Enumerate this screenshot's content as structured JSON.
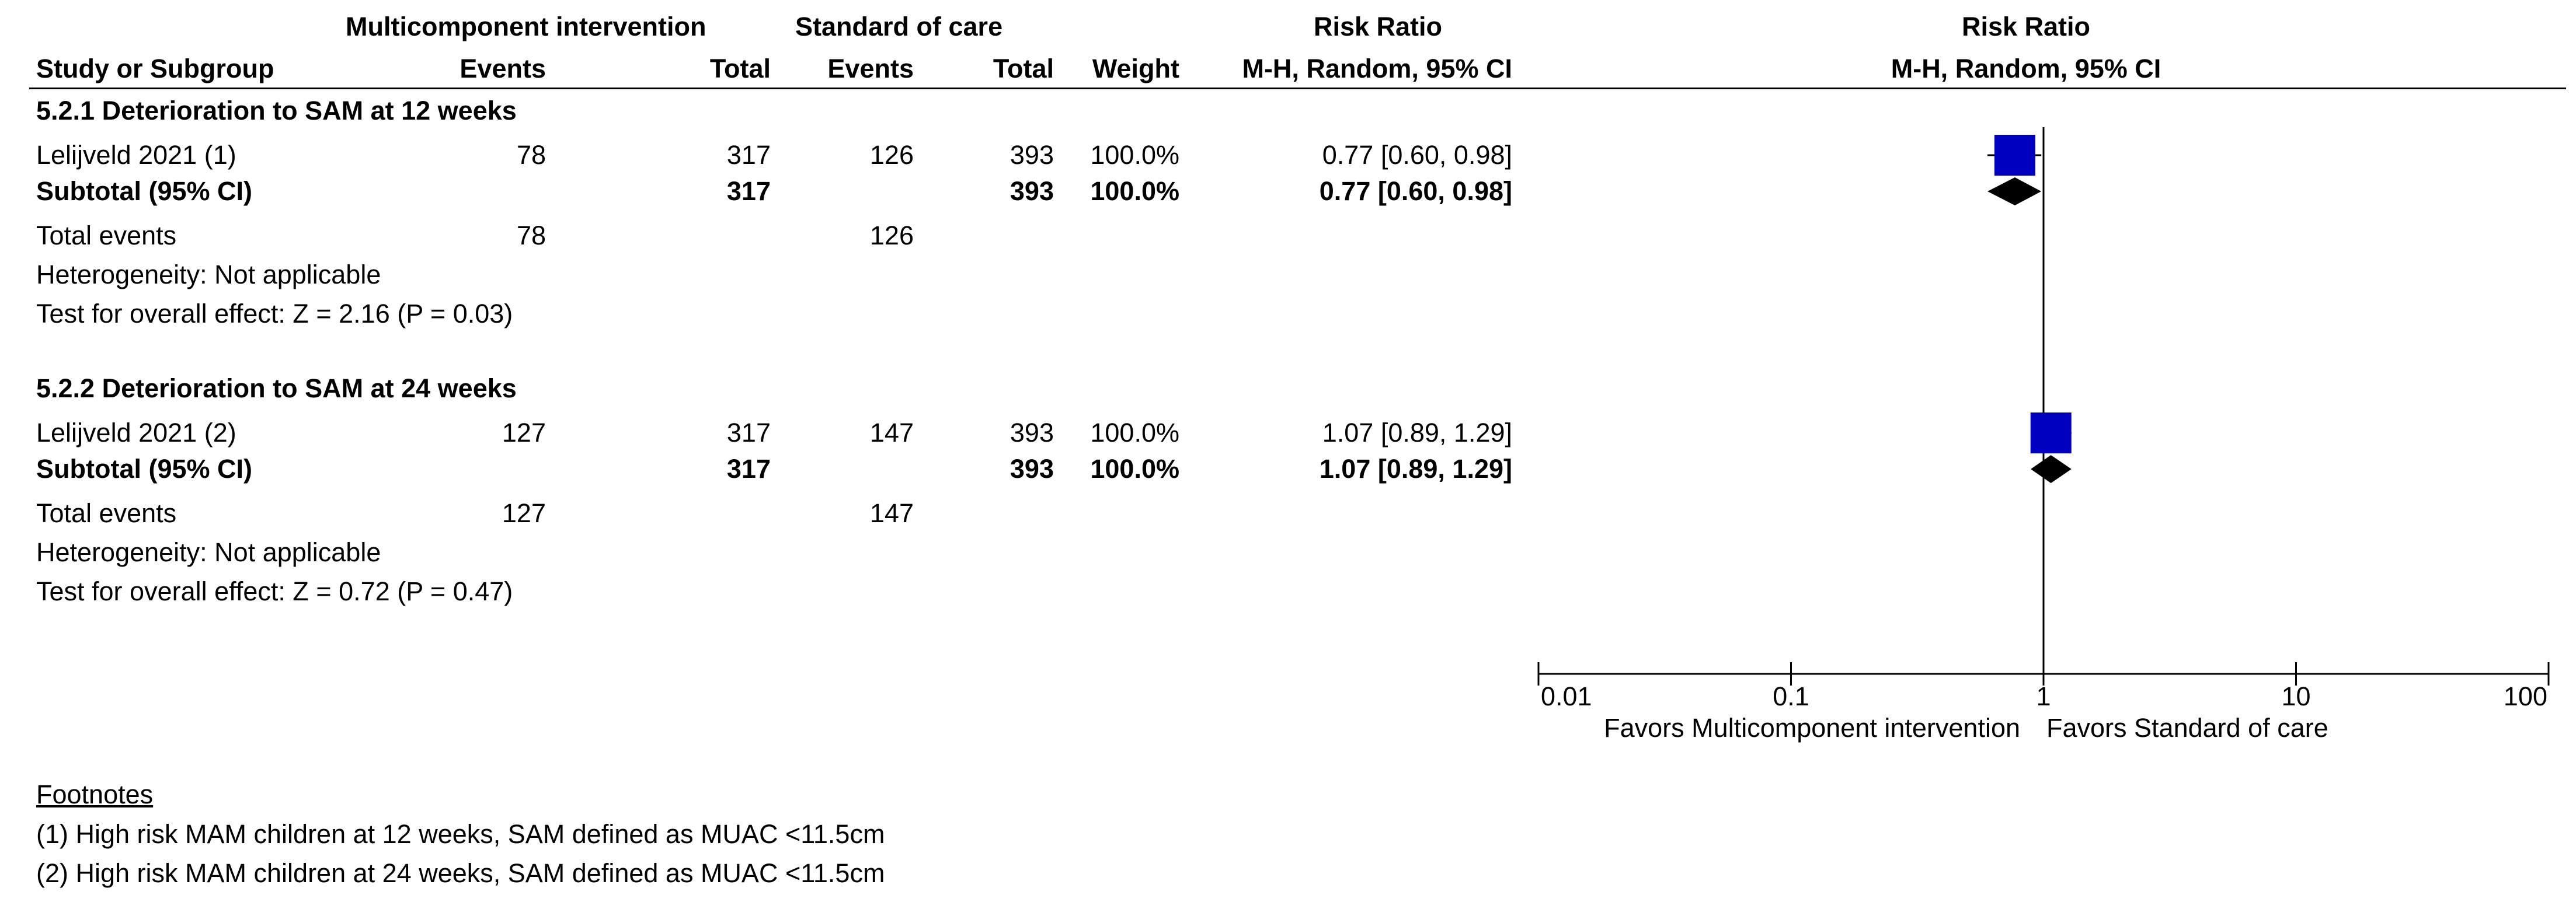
{
  "header": {
    "group1": "Multicomponent intervention",
    "group2": "Standard of care",
    "rr_title_table": "Risk Ratio",
    "rr_title_plot": "Risk Ratio",
    "col_study": "Study or Subgroup",
    "col_events1": "Events",
    "col_total1": "Total",
    "col_events2": "Events",
    "col_total2": "Total",
    "col_weight": "Weight",
    "col_method_table": "M-H, Random, 95% CI",
    "col_method_plot": "M-H, Random, 95% CI"
  },
  "subgroups": [
    {
      "title": "5.2.1 Deterioration to SAM at 12 weeks",
      "study": {
        "name": "Lelijveld 2021 (1)",
        "events1": "78",
        "total1": "317",
        "events2": "126",
        "total2": "393",
        "weight": "100.0%",
        "ci": "0.77 [0.60, 0.98]"
      },
      "subtotal": {
        "label": "Subtotal (95% CI)",
        "total1": "317",
        "total2": "393",
        "weight": "100.0%",
        "ci": "0.77 [0.60, 0.98]"
      },
      "total_events": {
        "label": "Total events",
        "events1": "78",
        "events2": "126"
      },
      "heterogeneity": "Heterogeneity: Not applicable",
      "overall_effect": "Test for overall effect: Z = 2.16 (P = 0.03)"
    },
    {
      "title": "5.2.2 Deterioration to SAM at 24 weeks",
      "study": {
        "name": "Lelijveld 2021 (2)",
        "events1": "127",
        "total1": "317",
        "events2": "147",
        "total2": "393",
        "weight": "100.0%",
        "ci": "1.07 [0.89, 1.29]"
      },
      "subtotal": {
        "label": "Subtotal (95% CI)",
        "total1": "317",
        "total2": "393",
        "weight": "100.0%",
        "ci": "1.07 [0.89, 1.29]"
      },
      "total_events": {
        "label": "Total events",
        "events1": "127",
        "events2": "147"
      },
      "heterogeneity": "Heterogeneity: Not applicable",
      "overall_effect": "Test for overall effect: Z = 0.72 (P = 0.47)"
    }
  ],
  "footnotes": {
    "title": "Footnotes",
    "items": [
      "(1) High risk MAM children at 12 weeks, SAM defined as MUAC <11.5cm",
      "(2) High risk MAM children at 24 weeks, SAM defined as MUAC <11.5cm"
    ]
  },
  "colors": {
    "study_marker": "#0000c0",
    "diamond": "#000000",
    "line": "#000000"
  },
  "chart_data": {
    "type": "forest",
    "scale": "log",
    "xlim": [
      0.01,
      100
    ],
    "xticks": [
      0.01,
      0.1,
      1,
      10,
      100
    ],
    "xtick_labels": [
      "0.01",
      "0.1",
      "1",
      "10",
      "100"
    ],
    "null_value": 1,
    "favors_left": "Favors Multicomponent intervention",
    "favors_right": "Favors Standard of care",
    "rows": [
      {
        "kind": "study",
        "label": "Lelijveld 2021 (1)",
        "estimate": 0.77,
        "lower": 0.6,
        "upper": 0.98,
        "weight": 100.0
      },
      {
        "kind": "subtotal",
        "label": "Subtotal (95% CI)",
        "estimate": 0.77,
        "lower": 0.6,
        "upper": 0.98
      },
      {
        "kind": "study",
        "label": "Lelijveld 2021 (2)",
        "estimate": 1.07,
        "lower": 0.89,
        "upper": 1.29,
        "weight": 100.0
      },
      {
        "kind": "subtotal",
        "label": "Subtotal (95% CI)",
        "estimate": 1.07,
        "lower": 0.89,
        "upper": 1.29
      }
    ]
  }
}
